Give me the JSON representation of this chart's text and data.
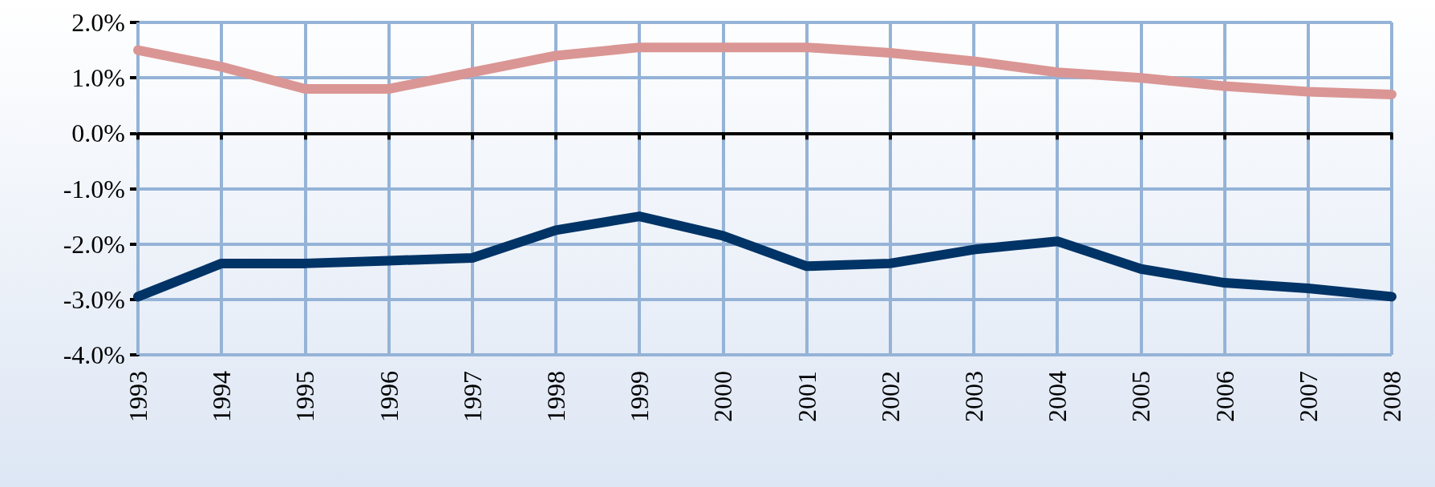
{
  "chart_data": {
    "type": "line",
    "categories": [
      "1993",
      "1994",
      "1995",
      "1996",
      "1997",
      "1998",
      "1999",
      "2000",
      "2001",
      "2002",
      "2003",
      "2004",
      "2005",
      "2006",
      "2007",
      "2008"
    ],
    "series": [
      {
        "color": "#da9694",
        "values": [
          1.5,
          1.2,
          0.8,
          0.8,
          1.1,
          1.4,
          1.55,
          1.55,
          1.55,
          1.45,
          1.3,
          1.1,
          1.0,
          0.85,
          0.75,
          0.7
        ]
      },
      {
        "color": "#003366",
        "values": [
          -2.95,
          -2.35,
          -2.35,
          -2.3,
          -2.25,
          -1.75,
          -1.5,
          -1.85,
          -2.4,
          -2.35,
          -2.1,
          -1.95,
          -2.45,
          -2.7,
          -2.8,
          -2.95
        ]
      }
    ],
    "ylim": [
      -4,
      2
    ],
    "yticks": [
      {
        "value": -4,
        "label": "-4.0%"
      },
      {
        "value": -3,
        "label": "-3.0%"
      },
      {
        "value": -2,
        "label": "-2.0%"
      },
      {
        "value": -1,
        "label": "-1.0%"
      },
      {
        "value": 0,
        "label": "0.0%"
      },
      {
        "value": 1,
        "label": "1.0%"
      },
      {
        "value": 2,
        "label": "2.0%"
      }
    ],
    "grid": true,
    "line_style": "solid"
  }
}
